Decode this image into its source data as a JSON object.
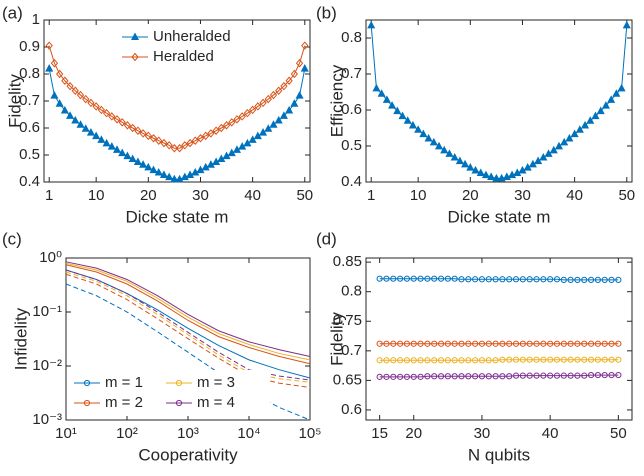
{
  "chart_data": [
    {
      "type": "line",
      "panel_label": "(a)",
      "x_label": "Dicke state m",
      "y_label": "Fidelity",
      "x": [
        1,
        2,
        3,
        4,
        5,
        6,
        7,
        8,
        9,
        10,
        11,
        12,
        13,
        14,
        15,
        16,
        17,
        18,
        19,
        20,
        21,
        22,
        23,
        24,
        25,
        26,
        27,
        28,
        29,
        30,
        31,
        32,
        33,
        34,
        35,
        36,
        37,
        38,
        39,
        40,
        41,
        42,
        43,
        44,
        45,
        46,
        47,
        48,
        49,
        50
      ],
      "xlim": [
        0,
        51
      ],
      "xticks": [
        1,
        10,
        20,
        30,
        40,
        50
      ],
      "ylim": [
        0.4,
        1
      ],
      "yticks": [
        0.4,
        0.5,
        0.6,
        0.7,
        0.8,
        0.9,
        1
      ],
      "legend": "upper center",
      "ncol": 1,
      "series": [
        {
          "name": "Unheralded",
          "color": "#0072BD",
          "marker": "triangle",
          "values": [
            0.82,
            0.72,
            0.69,
            0.665,
            0.645,
            0.628,
            0.612,
            0.597,
            0.583,
            0.57,
            0.556,
            0.543,
            0.531,
            0.519,
            0.507,
            0.496,
            0.485,
            0.474,
            0.464,
            0.454,
            0.444,
            0.435,
            0.426,
            0.418,
            0.41,
            0.41,
            0.418,
            0.426,
            0.435,
            0.444,
            0.454,
            0.464,
            0.474,
            0.485,
            0.496,
            0.507,
            0.519,
            0.531,
            0.543,
            0.556,
            0.57,
            0.583,
            0.597,
            0.612,
            0.628,
            0.645,
            0.665,
            0.69,
            0.72,
            0.82
          ]
        },
        {
          "name": "Heralded",
          "color": "#D95319",
          "marker": "diamond",
          "values": [
            0.905,
            0.84,
            0.8,
            0.775,
            0.755,
            0.738,
            0.722,
            0.707,
            0.693,
            0.68,
            0.667,
            0.655,
            0.643,
            0.632,
            0.621,
            0.61,
            0.6,
            0.59,
            0.58,
            0.571,
            0.562,
            0.553,
            0.544,
            0.536,
            0.525,
            0.525,
            0.536,
            0.544,
            0.553,
            0.562,
            0.571,
            0.58,
            0.59,
            0.6,
            0.61,
            0.621,
            0.632,
            0.643,
            0.655,
            0.667,
            0.68,
            0.693,
            0.707,
            0.722,
            0.738,
            0.755,
            0.775,
            0.8,
            0.84,
            0.905
          ]
        }
      ]
    },
    {
      "type": "line",
      "panel_label": "(b)",
      "x_label": "Dicke state m",
      "y_label": "Efficiency",
      "x": [
        1,
        2,
        3,
        4,
        5,
        6,
        7,
        8,
        9,
        10,
        11,
        12,
        13,
        14,
        15,
        16,
        17,
        18,
        19,
        20,
        21,
        22,
        23,
        24,
        25,
        26,
        27,
        28,
        29,
        30,
        31,
        32,
        33,
        34,
        35,
        36,
        37,
        38,
        39,
        40,
        41,
        42,
        43,
        44,
        45,
        46,
        47,
        48,
        49,
        50
      ],
      "xlim": [
        0,
        51
      ],
      "xticks": [
        1,
        10,
        20,
        30,
        40,
        50
      ],
      "ylim": [
        0.4,
        0.85
      ],
      "yticks": [
        0.4,
        0.5,
        0.6,
        0.7,
        0.8
      ],
      "series": [
        {
          "color": "#0072BD",
          "marker": "triangle",
          "values": [
            0.835,
            0.66,
            0.645,
            0.628,
            0.612,
            0.597,
            0.583,
            0.57,
            0.557,
            0.545,
            0.533,
            0.521,
            0.51,
            0.499,
            0.488,
            0.478,
            0.468,
            0.458,
            0.449,
            0.44,
            0.432,
            0.425,
            0.419,
            0.414,
            0.41,
            0.41,
            0.414,
            0.419,
            0.425,
            0.432,
            0.44,
            0.449,
            0.458,
            0.468,
            0.478,
            0.488,
            0.499,
            0.51,
            0.521,
            0.533,
            0.545,
            0.557,
            0.57,
            0.583,
            0.597,
            0.612,
            0.628,
            0.645,
            0.66,
            0.835
          ]
        }
      ]
    },
    {
      "type": "line",
      "panel_label": "(c)",
      "x_label": "Cooperativity",
      "y_label": "Infidelity",
      "xscale": "log",
      "yscale": "log",
      "x": [
        10,
        31.6,
        100,
        316,
        1000,
        3162,
        10000,
        31623,
        100000
      ],
      "xlim": [
        10,
        100000
      ],
      "xticks": [
        {
          "value": 10,
          "label": "10¹"
        },
        {
          "value": 100,
          "label": "10²"
        },
        {
          "value": 1000,
          "label": "10³"
        },
        {
          "value": 10000,
          "label": "10⁴"
        },
        {
          "value": 100000,
          "label": "10⁵"
        }
      ],
      "ylim": [
        0.001,
        1
      ],
      "yticks": [
        {
          "value": 0.001,
          "label": "10⁻³"
        },
        {
          "value": 0.01,
          "label": "10⁻²"
        },
        {
          "value": 0.1,
          "label": "10⁻¹"
        },
        {
          "value": 1,
          "label": "10⁰"
        }
      ],
      "legend": "lower left",
      "ncol": 2,
      "series": [
        {
          "name": "m = 1",
          "color": "#0072BD",
          "marker": "circle",
          "values": [
            0.6,
            0.4,
            0.22,
            0.11,
            0.05,
            0.024,
            0.013,
            0.0085,
            0.006
          ],
          "dashed_values": [
            0.33,
            0.2,
            0.1,
            0.043,
            0.018,
            0.0075,
            0.0033,
            0.0017,
            0.001
          ]
        },
        {
          "name": "m = 2",
          "color": "#D95319",
          "marker": "circle",
          "values": [
            0.75,
            0.55,
            0.33,
            0.16,
            0.07,
            0.035,
            0.022,
            0.015,
            0.011
          ],
          "dashed_values": [
            0.5,
            0.33,
            0.17,
            0.075,
            0.032,
            0.014,
            0.0065,
            0.0048,
            0.004
          ]
        },
        {
          "name": "m = 3",
          "color": "#EDB120",
          "marker": "circle",
          "values": [
            0.8,
            0.6,
            0.37,
            0.18,
            0.08,
            0.04,
            0.025,
            0.017,
            0.013
          ],
          "dashed_values": [
            0.55,
            0.37,
            0.2,
            0.09,
            0.038,
            0.016,
            0.0075,
            0.0058,
            0.005
          ]
        },
        {
          "name": "m = 4",
          "color": "#7E2F8E",
          "marker": "circle",
          "values": [
            0.85,
            0.65,
            0.4,
            0.2,
            0.09,
            0.045,
            0.028,
            0.02,
            0.015
          ],
          "dashed_values": [
            0.6,
            0.4,
            0.22,
            0.1,
            0.042,
            0.018,
            0.0085,
            0.0065,
            0.0055
          ]
        }
      ]
    },
    {
      "type": "line",
      "panel_label": "(d)",
      "x_label": "N qubits",
      "y_label": "Fidelity",
      "x": [
        15,
        16,
        17,
        18,
        19,
        20,
        21,
        22,
        23,
        24,
        25,
        26,
        27,
        28,
        29,
        30,
        31,
        32,
        33,
        34,
        35,
        36,
        37,
        38,
        39,
        40,
        41,
        42,
        43,
        44,
        45,
        46,
        47,
        48,
        49,
        50
      ],
      "xlim": [
        13,
        52
      ],
      "xticks": [
        15,
        20,
        30,
        40,
        50
      ],
      "ylim": [
        0.583,
        0.857
      ],
      "yticks": [
        0.6,
        0.65,
        0.7,
        0.75,
        0.8,
        0.85
      ],
      "series": [
        {
          "color": "#0072BD",
          "marker": "circle",
          "values": [
            0.822,
            0.822,
            0.822,
            0.822,
            0.822,
            0.822,
            0.822,
            0.822,
            0.822,
            0.822,
            0.822,
            0.822,
            0.821,
            0.821,
            0.821,
            0.821,
            0.821,
            0.821,
            0.821,
            0.821,
            0.821,
            0.821,
            0.821,
            0.821,
            0.821,
            0.821,
            0.821,
            0.82,
            0.82,
            0.82,
            0.82,
            0.82,
            0.82,
            0.82,
            0.82,
            0.82
          ]
        },
        {
          "color": "#D95319",
          "marker": "circle",
          "values": [
            0.712,
            0.712,
            0.712,
            0.712,
            0.712,
            0.712,
            0.712,
            0.712,
            0.712,
            0.712,
            0.712,
            0.712,
            0.712,
            0.712,
            0.712,
            0.712,
            0.712,
            0.712,
            0.712,
            0.712,
            0.712,
            0.712,
            0.712,
            0.712,
            0.712,
            0.712,
            0.712,
            0.712,
            0.712,
            0.712,
            0.712,
            0.712,
            0.712,
            0.712,
            0.712,
            0.712
          ]
        },
        {
          "color": "#EDB120",
          "marker": "circle",
          "values": [
            0.684,
            0.684,
            0.684,
            0.684,
            0.684,
            0.684,
            0.684,
            0.684,
            0.684,
            0.684,
            0.684,
            0.684,
            0.684,
            0.684,
            0.684,
            0.684,
            0.684,
            0.684,
            0.685,
            0.685,
            0.685,
            0.685,
            0.685,
            0.685,
            0.685,
            0.685,
            0.685,
            0.685,
            0.685,
            0.685,
            0.685,
            0.685,
            0.685,
            0.685,
            0.685,
            0.685
          ]
        },
        {
          "color": "#7E2F8E",
          "marker": "circle",
          "values": [
            0.656,
            0.656,
            0.656,
            0.656,
            0.656,
            0.656,
            0.656,
            0.657,
            0.657,
            0.657,
            0.657,
            0.657,
            0.657,
            0.657,
            0.657,
            0.657,
            0.657,
            0.657,
            0.657,
            0.657,
            0.658,
            0.658,
            0.658,
            0.658,
            0.658,
            0.658,
            0.658,
            0.658,
            0.658,
            0.658,
            0.658,
            0.659,
            0.659,
            0.659,
            0.659,
            0.659
          ]
        }
      ]
    }
  ]
}
